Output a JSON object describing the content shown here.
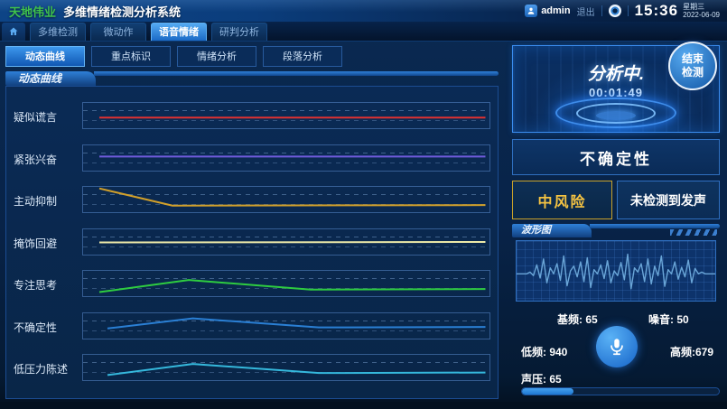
{
  "header": {
    "brand": "天地伟业",
    "title": "多维情绪检测分析系统",
    "user": "admin",
    "logout_label": "退出",
    "time": "15:36",
    "weekday": "星期三",
    "date": "2022-06-09"
  },
  "nav_tabs": [
    {
      "label": "多维检测",
      "active": false
    },
    {
      "label": "微动作",
      "active": false
    },
    {
      "label": "语音情绪",
      "active": true
    },
    {
      "label": "研判分析",
      "active": false
    }
  ],
  "sub_tabs": [
    {
      "label": "动态曲线",
      "active": true
    },
    {
      "label": "重点标识",
      "active": false
    },
    {
      "label": "情绪分析",
      "active": false
    },
    {
      "label": "段落分析",
      "active": false
    }
  ],
  "curve_panel": {
    "title": "动态曲线"
  },
  "chart_data": [
    {
      "type": "line",
      "title": "动态曲线",
      "note": "7 stacked mini-timelines; points are [x% of band width, y% of band height from top]",
      "grid": "two dashed horizontal gridlines per band",
      "series": [
        {
          "name": "疑似谎言",
          "color": "#e03131",
          "points": [
            [
              4,
              58
            ],
            [
              99,
              58
            ]
          ]
        },
        {
          "name": "紧张兴奋",
          "color": "#6f5bdc",
          "points": [
            [
              4,
              44
            ],
            [
              99,
              44
            ]
          ]
        },
        {
          "name": "主动抑制",
          "color": "#d2a02a",
          "points": [
            [
              4,
              6
            ],
            [
              22,
              74
            ],
            [
              99,
              72
            ]
          ]
        },
        {
          "name": "掩饰回避",
          "color": "#ece9a8",
          "points": [
            [
              4,
              52
            ],
            [
              99,
              50
            ]
          ]
        },
        {
          "name": "专注思考",
          "color": "#2ecc40",
          "points": [
            [
              4,
              84
            ],
            [
              26,
              36
            ],
            [
              56,
              74
            ],
            [
              99,
              72
            ]
          ]
        },
        {
          "name": "不确定性",
          "color": "#2a7fd4",
          "points": [
            [
              6,
              60
            ],
            [
              27,
              20
            ],
            [
              58,
              56
            ],
            [
              99,
              54
            ]
          ]
        },
        {
          "name": "低压力陈述",
          "color": "#35b8dc",
          "points": [
            [
              6,
              80
            ],
            [
              27,
              36
            ],
            [
              58,
              72
            ],
            [
              99,
              70
            ]
          ]
        }
      ]
    },
    {
      "type": "line",
      "title": "波形图",
      "note": "audio waveform, y% (50 = baseline)",
      "color": "#6aa6d8",
      "values": [
        55,
        55,
        55,
        55,
        52,
        58,
        40,
        62,
        30,
        70,
        45,
        55,
        38,
        66,
        25,
        75,
        50,
        42,
        60,
        35,
        68,
        28,
        78,
        48,
        55,
        40,
        63,
        33,
        70,
        50,
        58,
        36,
        65,
        22,
        80,
        45,
        52,
        38,
        68,
        30,
        72,
        42,
        58,
        25,
        76,
        48,
        55,
        35,
        64,
        44,
        60,
        32,
        70,
        46,
        55,
        52,
        55,
        55,
        55,
        55
      ]
    }
  ],
  "right_panel": {
    "status_title": "分析中.",
    "timer": "00:01:49",
    "end_button": "结束检测",
    "uncertainty_label": "不确定性",
    "risk_label": "中风险",
    "voice_label": "未检测到发声",
    "waveform_title": "波形图",
    "stats": [
      {
        "label": "基频",
        "value": 65,
        "text": "基频: 65"
      },
      {
        "label": "噪音",
        "value": 50,
        "text": "噪音: 50"
      },
      {
        "label": "低频",
        "value": 940,
        "text": "低频: 940"
      },
      {
        "label": "高频",
        "value": 679,
        "text": "高频:679"
      }
    ],
    "sound_pressure": {
      "label": "声压",
      "value": 65,
      "text": "声压: 65",
      "bar_percent": 26
    }
  },
  "colors": {
    "brand_green": "#3fc24d",
    "accent_blue": "#2f7fe0",
    "active_tab_blue": "#3c97ec",
    "risk_gold": "#f5c342",
    "panel_bg": "#0a2a55"
  }
}
